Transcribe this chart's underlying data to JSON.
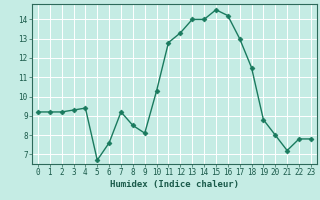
{
  "x": [
    0,
    1,
    2,
    3,
    4,
    5,
    6,
    7,
    8,
    9,
    10,
    11,
    12,
    13,
    14,
    15,
    16,
    17,
    18,
    19,
    20,
    21,
    22,
    23
  ],
  "y": [
    9.2,
    9.2,
    9.2,
    9.3,
    9.4,
    6.7,
    7.6,
    9.2,
    8.5,
    8.1,
    10.3,
    12.8,
    13.3,
    14.0,
    14.0,
    14.5,
    14.2,
    13.0,
    11.5,
    8.8,
    8.0,
    7.2,
    7.8,
    7.8
  ],
  "xlabel": "Humidex (Indice chaleur)",
  "ylim": [
    6.5,
    14.8
  ],
  "xlim": [
    -0.5,
    23.5
  ],
  "yticks": [
    7,
    8,
    9,
    10,
    11,
    12,
    13,
    14
  ],
  "xticks": [
    0,
    1,
    2,
    3,
    4,
    5,
    6,
    7,
    8,
    9,
    10,
    11,
    12,
    13,
    14,
    15,
    16,
    17,
    18,
    19,
    20,
    21,
    22,
    23
  ],
  "line_color": "#1a7a5e",
  "marker_color": "#1a7a5e",
  "bg_color": "#c5ece4",
  "grid_color": "#ffffff",
  "axis_color": "#2d6a5a",
  "label_color": "#1a5a4a",
  "tick_fontsize": 5.5,
  "xlabel_fontsize": 6.5
}
